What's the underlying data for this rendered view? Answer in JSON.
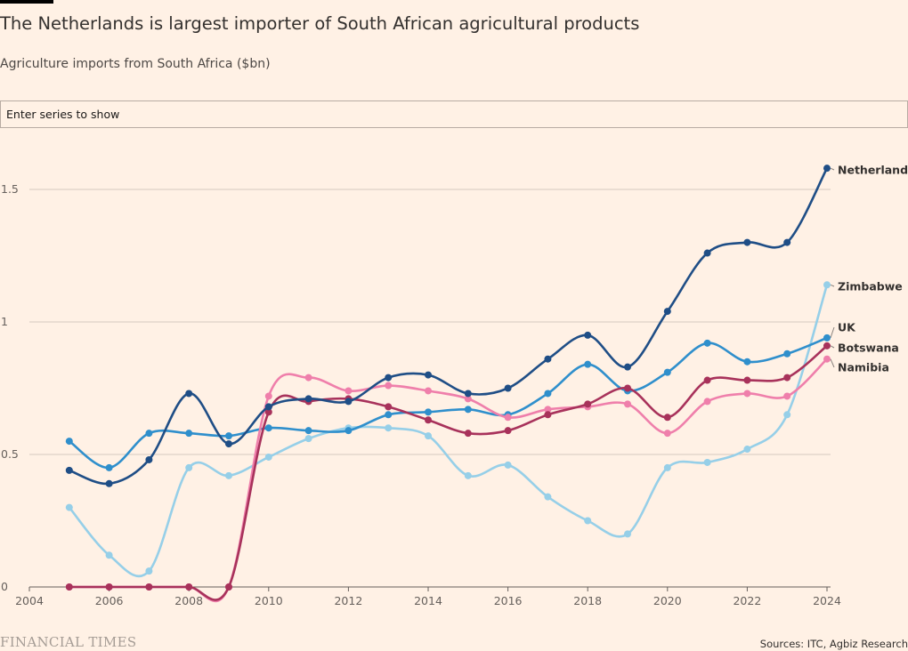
{
  "title": "The Netherlands is largest importer of South African agricultural products",
  "subtitle": "Agriculture imports from South Africa ($bn)",
  "search": {
    "placeholder": "Enter series to show"
  },
  "footer": {
    "logo": "FINANCIAL TIMES",
    "source": "Sources: ITC, Agbiz Research"
  },
  "colors": {
    "background": "#fff1e5",
    "Netherlands": "#1f4e86",
    "Zimbabwe": "#96cfe8",
    "UK": "#2f8fcc",
    "Botswana": "#a8325b",
    "Namibia": "#ef7fab"
  },
  "chart_data": {
    "type": "line",
    "title": "The Netherlands is largest importer of South African agricultural products",
    "ylabel": "Agriculture imports from South Africa ($bn)",
    "xlim": [
      2004,
      2024
    ],
    "ylim": [
      0,
      1.5
    ],
    "x_ticks": [
      "2004",
      "2006",
      "2008",
      "2010",
      "2012",
      "2014",
      "2016",
      "2018",
      "2020",
      "2022",
      "2024"
    ],
    "y_ticks": [
      "0",
      "0.5",
      "1",
      "1.5"
    ],
    "grid": true,
    "legend": "direct labels at line ends",
    "x": [
      2005,
      2006,
      2007,
      2008,
      2009,
      2010,
      2011,
      2012,
      2013,
      2014,
      2015,
      2016,
      2017,
      2018,
      2019,
      2020,
      2021,
      2022,
      2023,
      2024
    ],
    "series": [
      {
        "name": "Netherlands",
        "values": [
          0.44,
          0.39,
          0.48,
          0.73,
          0.54,
          0.68,
          0.71,
          0.7,
          0.79,
          0.8,
          0.73,
          0.75,
          0.86,
          0.95,
          0.83,
          1.04,
          1.26,
          1.3,
          1.3,
          1.58
        ]
      },
      {
        "name": "Zimbabwe",
        "values": [
          0.3,
          0.12,
          0.06,
          0.45,
          0.42,
          0.49,
          0.56,
          0.6,
          0.6,
          0.57,
          0.42,
          0.46,
          0.34,
          0.25,
          0.2,
          0.45,
          0.47,
          0.52,
          0.65,
          1.14
        ]
      },
      {
        "name": "UK",
        "values": [
          0.55,
          0.45,
          0.58,
          0.58,
          0.57,
          0.6,
          0.59,
          0.59,
          0.65,
          0.66,
          0.67,
          0.65,
          0.73,
          0.84,
          0.74,
          0.81,
          0.92,
          0.85,
          0.88,
          0.94
        ]
      },
      {
        "name": "Botswana",
        "values": [
          0.0,
          0.0,
          0.0,
          0.0,
          0.0,
          0.66,
          0.7,
          0.71,
          0.68,
          0.63,
          0.58,
          0.59,
          0.65,
          0.69,
          0.75,
          0.64,
          0.78,
          0.78,
          0.79,
          0.91
        ]
      },
      {
        "name": "Namibia",
        "values": [
          0.0,
          0.0,
          0.0,
          0.0,
          0.0,
          0.72,
          0.79,
          0.74,
          0.76,
          0.74,
          0.71,
          0.64,
          0.67,
          0.68,
          0.69,
          0.58,
          0.7,
          0.73,
          0.72,
          0.86
        ]
      }
    ]
  }
}
